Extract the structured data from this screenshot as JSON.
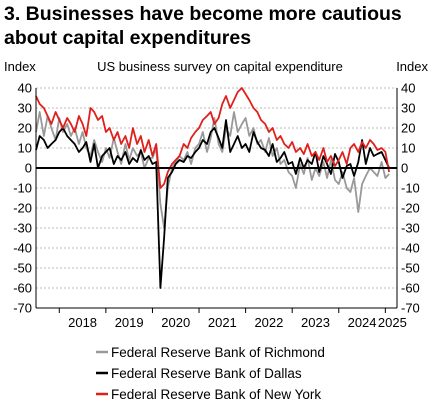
{
  "title_line1": "3. Businesses have become more cautious",
  "title_line2": "about capital expenditures",
  "chart_data": {
    "type": "line",
    "title": "3. Businesses have become more cautious about capital expenditures",
    "subtitle": "US business survey on capital expenditure",
    "ylabel_left": "Index",
    "ylabel_right": "Index",
    "ylim": [
      -70,
      40
    ],
    "yticks": [
      40,
      30,
      20,
      10,
      0,
      -10,
      -20,
      -30,
      -40,
      -50,
      -60,
      -70
    ],
    "xlim": [
      2017.5,
      2025.25
    ],
    "xticks": [
      "2018",
      "2019",
      "2020",
      "2021",
      "2022",
      "2023",
      "2024",
      "2025"
    ],
    "grid": true,
    "legend_position": "bottom",
    "series": [
      {
        "name": "Federal Reserve Bank of Richmond",
        "color": "#999999",
        "x": [
          2017.5,
          2017.58,
          2017.67,
          2017.75,
          2017.83,
          2017.92,
          2018.0,
          2018.08,
          2018.17,
          2018.25,
          2018.33,
          2018.42,
          2018.5,
          2018.58,
          2018.67,
          2018.75,
          2018.83,
          2018.92,
          2019.0,
          2019.08,
          2019.17,
          2019.25,
          2019.33,
          2019.42,
          2019.5,
          2019.58,
          2019.67,
          2019.75,
          2019.83,
          2019.92,
          2020.0,
          2020.08,
          2020.17,
          2020.25,
          2020.33,
          2020.42,
          2020.5,
          2020.58,
          2020.67,
          2020.75,
          2020.83,
          2020.92,
          2021.0,
          2021.08,
          2021.17,
          2021.25,
          2021.33,
          2021.42,
          2021.5,
          2021.58,
          2021.67,
          2021.75,
          2021.83,
          2021.92,
          2022.0,
          2022.08,
          2022.17,
          2022.25,
          2022.33,
          2022.42,
          2022.5,
          2022.58,
          2022.67,
          2022.75,
          2022.83,
          2022.92,
          2023.0,
          2023.08,
          2023.17,
          2023.25,
          2023.33,
          2023.42,
          2023.5,
          2023.58,
          2023.67,
          2023.75,
          2023.83,
          2023.92,
          2024.0,
          2024.08,
          2024.17,
          2024.25,
          2024.33,
          2024.42,
          2024.5,
          2024.58,
          2024.67,
          2024.75,
          2024.83,
          2024.92,
          2025.0,
          2025.08
        ],
        "y": [
          18,
          28,
          16,
          26,
          20,
          14,
          25,
          18,
          22,
          16,
          20,
          12,
          18,
          10,
          6,
          14,
          8,
          3,
          10,
          5,
          15,
          8,
          2,
          12,
          4,
          10,
          6,
          8,
          0,
          5,
          5,
          10,
          -18,
          -30,
          -10,
          0,
          3,
          6,
          4,
          8,
          2,
          10,
          12,
          18,
          8,
          15,
          25,
          12,
          8,
          20,
          16,
          28,
          18,
          22,
          25,
          16,
          20,
          12,
          14,
          8,
          15,
          6,
          10,
          2,
          4,
          -2,
          -4,
          -10,
          2,
          -3,
          5,
          -6,
          0,
          -4,
          3,
          -5,
          4,
          -6,
          -8,
          -2,
          -10,
          -12,
          -5,
          -22,
          -8,
          -4,
          0,
          -2,
          -4,
          3,
          -5,
          -3
        ]
      },
      {
        "name": "Federal Reserve Bank of Dallas",
        "color": "#000000",
        "x": [
          2017.5,
          2017.58,
          2017.67,
          2017.75,
          2017.83,
          2017.92,
          2018.0,
          2018.08,
          2018.17,
          2018.25,
          2018.33,
          2018.42,
          2018.5,
          2018.58,
          2018.67,
          2018.75,
          2018.83,
          2018.92,
          2019.0,
          2019.08,
          2019.17,
          2019.25,
          2019.33,
          2019.42,
          2019.5,
          2019.58,
          2019.67,
          2019.75,
          2019.83,
          2019.92,
          2020.0,
          2020.08,
          2020.17,
          2020.25,
          2020.33,
          2020.42,
          2020.5,
          2020.58,
          2020.67,
          2020.75,
          2020.83,
          2020.92,
          2021.0,
          2021.08,
          2021.17,
          2021.25,
          2021.33,
          2021.42,
          2021.5,
          2021.58,
          2021.67,
          2021.75,
          2021.83,
          2021.92,
          2022.0,
          2022.08,
          2022.17,
          2022.25,
          2022.33,
          2022.42,
          2022.5,
          2022.58,
          2022.67,
          2022.75,
          2022.83,
          2022.92,
          2023.0,
          2023.08,
          2023.17,
          2023.25,
          2023.33,
          2023.42,
          2023.5,
          2023.58,
          2023.67,
          2023.75,
          2023.83,
          2023.92,
          2024.0,
          2024.08,
          2024.17,
          2024.25,
          2024.33,
          2024.42,
          2024.5,
          2024.58,
          2024.67,
          2024.75,
          2024.83,
          2024.92,
          2025.0,
          2025.08
        ],
        "y": [
          9,
          16,
          14,
          10,
          12,
          14,
          18,
          20,
          16,
          14,
          12,
          8,
          10,
          13,
          3,
          12,
          0,
          6,
          8,
          10,
          2,
          6,
          4,
          8,
          2,
          5,
          3,
          9,
          4,
          6,
          2,
          3,
          -60,
          -35,
          -5,
          -2,
          2,
          4,
          3,
          6,
          5,
          8,
          10,
          14,
          12,
          18,
          20,
          15,
          10,
          24,
          8,
          12,
          16,
          10,
          12,
          8,
          18,
          13,
          10,
          9,
          6,
          12,
          3,
          5,
          8,
          2,
          3,
          -3,
          5,
          0,
          4,
          2,
          8,
          -2,
          6,
          2,
          -3,
          7,
          3,
          -5,
          1,
          2,
          -4,
          3,
          14,
          2,
          10,
          6,
          7,
          8,
          4,
          0
        ]
      },
      {
        "name": "Federal Reserve Bank of New York",
        "color": "#e0201b",
        "x": [
          2017.5,
          2017.58,
          2017.67,
          2017.75,
          2017.83,
          2017.92,
          2018.0,
          2018.08,
          2018.17,
          2018.25,
          2018.33,
          2018.42,
          2018.5,
          2018.58,
          2018.67,
          2018.75,
          2018.83,
          2018.92,
          2019.0,
          2019.08,
          2019.17,
          2019.25,
          2019.33,
          2019.42,
          2019.5,
          2019.58,
          2019.67,
          2019.75,
          2019.83,
          2019.92,
          2020.0,
          2020.08,
          2020.17,
          2020.25,
          2020.33,
          2020.42,
          2020.5,
          2020.58,
          2020.67,
          2020.75,
          2020.83,
          2020.92,
          2021.0,
          2021.08,
          2021.17,
          2021.25,
          2021.33,
          2021.42,
          2021.5,
          2021.58,
          2021.67,
          2021.75,
          2021.83,
          2021.92,
          2022.0,
          2022.08,
          2022.17,
          2022.25,
          2022.33,
          2022.42,
          2022.5,
          2022.58,
          2022.67,
          2022.75,
          2022.83,
          2022.92,
          2023.0,
          2023.08,
          2023.17,
          2023.25,
          2023.33,
          2023.42,
          2023.5,
          2023.58,
          2023.67,
          2023.75,
          2023.83,
          2023.92,
          2024.0,
          2024.08,
          2024.17,
          2024.25,
          2024.33,
          2024.42,
          2024.5,
          2024.58,
          2024.67,
          2024.75,
          2024.83,
          2024.92,
          2025.0,
          2025.08
        ],
        "y": [
          36,
          32,
          30,
          26,
          22,
          28,
          24,
          20,
          25,
          22,
          18,
          26,
          22,
          16,
          30,
          28,
          24,
          26,
          18,
          20,
          14,
          18,
          12,
          16,
          10,
          20,
          12,
          16,
          8,
          14,
          6,
          12,
          -10,
          -8,
          -2,
          2,
          4,
          6,
          12,
          10,
          15,
          18,
          20,
          24,
          26,
          28,
          22,
          25,
          32,
          36,
          30,
          34,
          38,
          40,
          37,
          34,
          30,
          28,
          24,
          22,
          18,
          20,
          14,
          16,
          12,
          10,
          13,
          8,
          10,
          7,
          12,
          6,
          8,
          4,
          10,
          3,
          6,
          1,
          4,
          8,
          2,
          10,
          12,
          8,
          13,
          10,
          14,
          12,
          9,
          10,
          8,
          -2
        ]
      }
    ]
  }
}
